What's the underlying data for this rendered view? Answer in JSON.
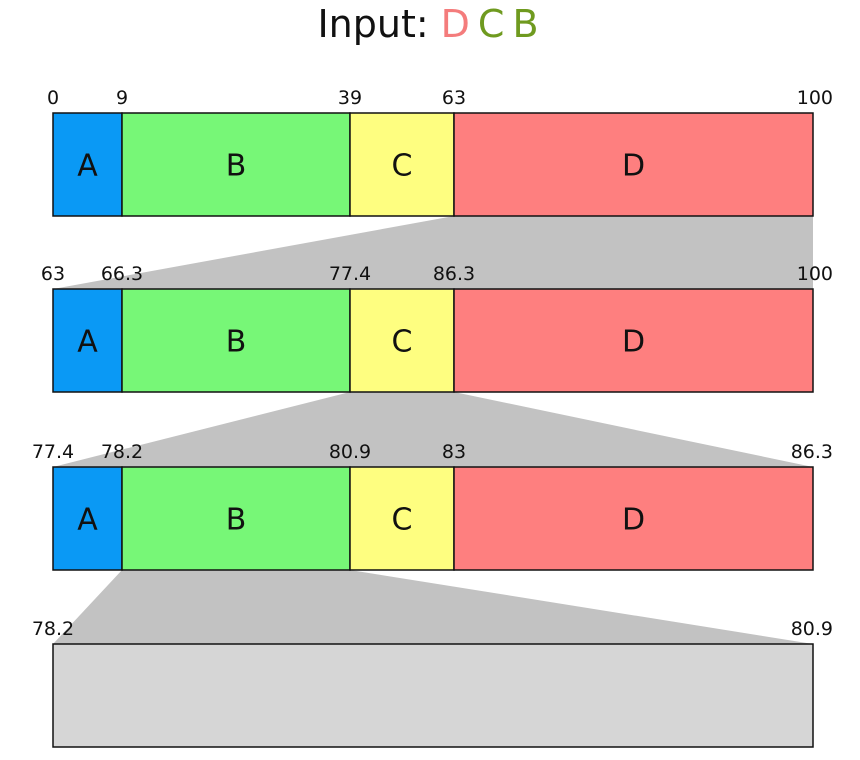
{
  "title": {
    "prefix": "Input:",
    "symbols": [
      {
        "text": "D",
        "color": "#f47c7c"
      },
      {
        "text": "C",
        "color": "#6f9a1f"
      },
      {
        "text": "B",
        "color": "#6f9a1f"
      }
    ]
  },
  "colors": {
    "A": "#0a99f5",
    "B": "#77f777",
    "C": "#fefe80",
    "D": "#fe7f7f",
    "empty": "#d6d6d6",
    "connector": "#c2c2c2"
  },
  "rows": [
    {
      "ticks": [
        "0",
        "9",
        "39",
        "63",
        "100"
      ],
      "segments": [
        "A",
        "B",
        "C",
        "D"
      ],
      "zoom_into": "D"
    },
    {
      "ticks": [
        "63",
        "66.3",
        "77.4",
        "86.3",
        "100"
      ],
      "segments": [
        "A",
        "B",
        "C",
        "D"
      ],
      "zoom_into": "C"
    },
    {
      "ticks": [
        "77.4",
        "78.2",
        "80.9",
        "83",
        "86.3"
      ],
      "segments": [
        "A",
        "B",
        "C",
        "D"
      ],
      "zoom_into": "B"
    },
    {
      "ticks": [
        "78.2",
        "80.9"
      ],
      "segments": [],
      "zoom_into": null
    }
  ]
}
